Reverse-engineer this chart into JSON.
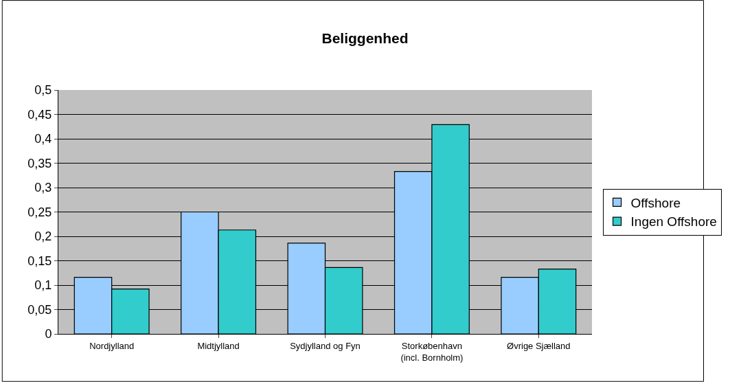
{
  "chart_data": {
    "type": "bar",
    "title": "Beliggenhed",
    "categories": [
      "Nordjylland",
      "Midtjylland",
      "Sydjylland og Fyn",
      "Storkøbenhavn\n(incl. Bornholm)",
      "Øvrige Sjælland"
    ],
    "series": [
      {
        "name": "Offshore",
        "color": "#99ccff",
        "values": [
          0.116,
          0.25,
          0.186,
          0.333,
          0.116
        ]
      },
      {
        "name": "Ingen Offshore",
        "color": "#33cccc",
        "values": [
          0.092,
          0.213,
          0.136,
          0.429,
          0.133
        ]
      }
    ],
    "ylim": [
      0,
      0.5
    ],
    "yticks": [
      {
        "value": 0,
        "label": "0"
      },
      {
        "value": 0.05,
        "label": "0,05"
      },
      {
        "value": 0.1,
        "label": "0,1"
      },
      {
        "value": 0.15,
        "label": "0,15"
      },
      {
        "value": 0.2,
        "label": "0,2"
      },
      {
        "value": 0.25,
        "label": "0,25"
      },
      {
        "value": 0.3,
        "label": "0,3"
      },
      {
        "value": 0.35,
        "label": "0,35"
      },
      {
        "value": 0.4,
        "label": "0,4"
      },
      {
        "value": 0.45,
        "label": "0,45"
      },
      {
        "value": 0.5,
        "label": "0,5"
      }
    ],
    "grid": "y",
    "legend": "right"
  }
}
